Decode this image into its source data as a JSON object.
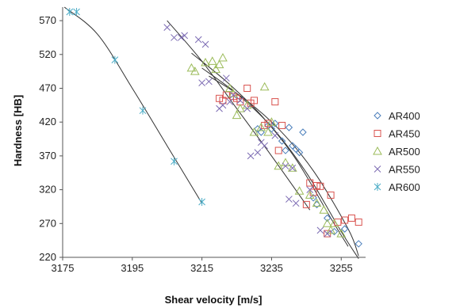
{
  "chart_data": {
    "type": "scatter",
    "xlabel": "Shear velocity [m/s]",
    "ylabel": "Hardness [HB]",
    "xlim": [
      3175,
      3262
    ],
    "ylim": [
      220,
      590
    ],
    "x_ticks": [
      3175,
      3195,
      3215,
      3235,
      3255
    ],
    "y_ticks": [
      220,
      270,
      320,
      370,
      420,
      470,
      520,
      570
    ],
    "grid": false,
    "legend": "right",
    "series": [
      {
        "name": "AR400",
        "marker": "diamond",
        "color": "#4a7ebb",
        "points": [
          [
            3231,
            410
          ],
          [
            3232,
            405
          ],
          [
            3234,
            415
          ],
          [
            3235,
            410
          ],
          [
            3236,
            418
          ],
          [
            3238,
            392
          ],
          [
            3239,
            378
          ],
          [
            3240,
            412
          ],
          [
            3241,
            385
          ],
          [
            3242,
            380
          ],
          [
            3243,
            375
          ],
          [
            3244,
            405
          ],
          [
            3247,
            308
          ],
          [
            3248,
            298
          ],
          [
            3251,
            278
          ],
          [
            3253,
            258
          ],
          [
            3256,
            262
          ],
          [
            3260,
            240
          ]
        ]
      },
      {
        "name": "AR450",
        "marker": "square",
        "color": "#d9534f",
        "points": [
          [
            3220,
            455
          ],
          [
            3221,
            452
          ],
          [
            3222,
            460
          ],
          [
            3224,
            458
          ],
          [
            3225,
            455
          ],
          [
            3226,
            450
          ],
          [
            3228,
            470
          ],
          [
            3229,
            448
          ],
          [
            3230,
            452
          ],
          [
            3233,
            415
          ],
          [
            3234,
            418
          ],
          [
            3236,
            450
          ],
          [
            3237,
            378
          ],
          [
            3238,
            415
          ],
          [
            3245,
            298
          ],
          [
            3246,
            330
          ],
          [
            3247,
            316
          ],
          [
            3248,
            326
          ],
          [
            3249,
            325
          ],
          [
            3251,
            255
          ],
          [
            3252,
            312
          ],
          [
            3254,
            272
          ],
          [
            3256,
            275
          ],
          [
            3258,
            278
          ],
          [
            3260,
            272
          ]
        ]
      },
      {
        "name": "AR500",
        "marker": "triangle",
        "color": "#9bbb59",
        "points": [
          [
            3212,
            500
          ],
          [
            3213,
            495
          ],
          [
            3216,
            508
          ],
          [
            3218,
            510
          ],
          [
            3219,
            498
          ],
          [
            3220,
            505
          ],
          [
            3221,
            515
          ],
          [
            3223,
            470
          ],
          [
            3224,
            462
          ],
          [
            3225,
            430
          ],
          [
            3226,
            440
          ],
          [
            3228,
            445
          ],
          [
            3230,
            405
          ],
          [
            3232,
            412
          ],
          [
            3233,
            472
          ],
          [
            3234,
            405
          ],
          [
            3235,
            420
          ],
          [
            3237,
            355
          ],
          [
            3239,
            360
          ],
          [
            3241,
            352
          ],
          [
            3243,
            318
          ],
          [
            3246,
            312
          ],
          [
            3248,
            300
          ],
          [
            3250,
            290
          ],
          [
            3251,
            270
          ],
          [
            3252,
            260
          ],
          [
            3253,
            270
          ],
          [
            3255,
            255
          ]
        ]
      },
      {
        "name": "AR550",
        "marker": "x",
        "color": "#7c6bb3",
        "points": [
          [
            3205,
            560
          ],
          [
            3207,
            545
          ],
          [
            3209,
            545
          ],
          [
            3210,
            548
          ],
          [
            3214,
            542
          ],
          [
            3215,
            478
          ],
          [
            3216,
            535
          ],
          [
            3217,
            480
          ],
          [
            3220,
            440
          ],
          [
            3221,
            445
          ],
          [
            3222,
            485
          ],
          [
            3223,
            450
          ],
          [
            3224,
            460
          ],
          [
            3226,
            452
          ],
          [
            3228,
            440
          ],
          [
            3229,
            370
          ],
          [
            3231,
            375
          ],
          [
            3232,
            390
          ],
          [
            3233,
            385
          ],
          [
            3236,
            400
          ],
          [
            3239,
            355
          ],
          [
            3240,
            306
          ],
          [
            3241,
            352
          ],
          [
            3242,
            300
          ],
          [
            3246,
            320
          ],
          [
            3249,
            260
          ],
          [
            3251,
            255
          ]
        ]
      },
      {
        "name": "AR600",
        "marker": "star",
        "color": "#4bacc6",
        "points": [
          [
            3177,
            583
          ],
          [
            3179,
            583
          ],
          [
            3190,
            512
          ],
          [
            3198,
            437
          ],
          [
            3207,
            362
          ],
          [
            3215,
            302
          ]
        ]
      }
    ],
    "trendlines": [
      {
        "name": "AR600",
        "points": [
          [
            3175.5,
            590
          ],
          [
            3185,
            550
          ],
          [
            3195,
            470
          ],
          [
            3205,
            385
          ],
          [
            3215,
            300
          ]
        ]
      },
      {
        "name": "AR550",
        "points": [
          [
            3205,
            570
          ],
          [
            3215,
            510
          ],
          [
            3225,
            440
          ],
          [
            3235,
            370
          ],
          [
            3246,
            290
          ]
        ]
      },
      {
        "name": "AR500",
        "points": [
          [
            3212,
            522
          ],
          [
            3222,
            480
          ],
          [
            3232,
            430
          ],
          [
            3242,
            365
          ],
          [
            3252,
            278
          ],
          [
            3257,
            236
          ]
        ]
      },
      {
        "name": "AR450",
        "points": [
          [
            3217,
            488
          ],
          [
            3227,
            455
          ],
          [
            3237,
            410
          ],
          [
            3247,
            348
          ],
          [
            3257,
            262
          ],
          [
            3260,
            222
          ]
        ]
      },
      {
        "name": "AR400",
        "points": [
          [
            3215,
            500
          ],
          [
            3225,
            462
          ],
          [
            3235,
            413
          ],
          [
            3245,
            345
          ],
          [
            3255,
            258
          ],
          [
            3260,
            218
          ]
        ]
      }
    ]
  }
}
